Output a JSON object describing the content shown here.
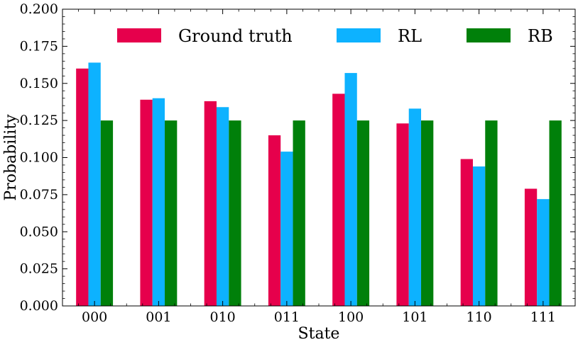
{
  "chart_data": {
    "type": "bar",
    "title": "",
    "xlabel": "State",
    "ylabel": "Probability",
    "categories": [
      "000",
      "001",
      "010",
      "011",
      "100",
      "101",
      "110",
      "111"
    ],
    "ylim": [
      0,
      0.2
    ],
    "yticks": [
      "0.000",
      "0.025",
      "0.050",
      "0.075",
      "0.100",
      "0.125",
      "0.150",
      "0.175",
      "0.200"
    ],
    "grid": false,
    "legend_position": "top",
    "series": [
      {
        "name": "Ground truth",
        "color": "#e6004c",
        "values": [
          0.16,
          0.139,
          0.138,
          0.115,
          0.143,
          0.123,
          0.099,
          0.079
        ]
      },
      {
        "name": "RL",
        "color": "#0db2ff",
        "values": [
          0.164,
          0.14,
          0.134,
          0.104,
          0.157,
          0.133,
          0.094,
          0.072
        ]
      },
      {
        "name": "RB",
        "color": "#00800a",
        "values": [
          0.125,
          0.125,
          0.125,
          0.125,
          0.125,
          0.125,
          0.125,
          0.125
        ]
      }
    ]
  }
}
